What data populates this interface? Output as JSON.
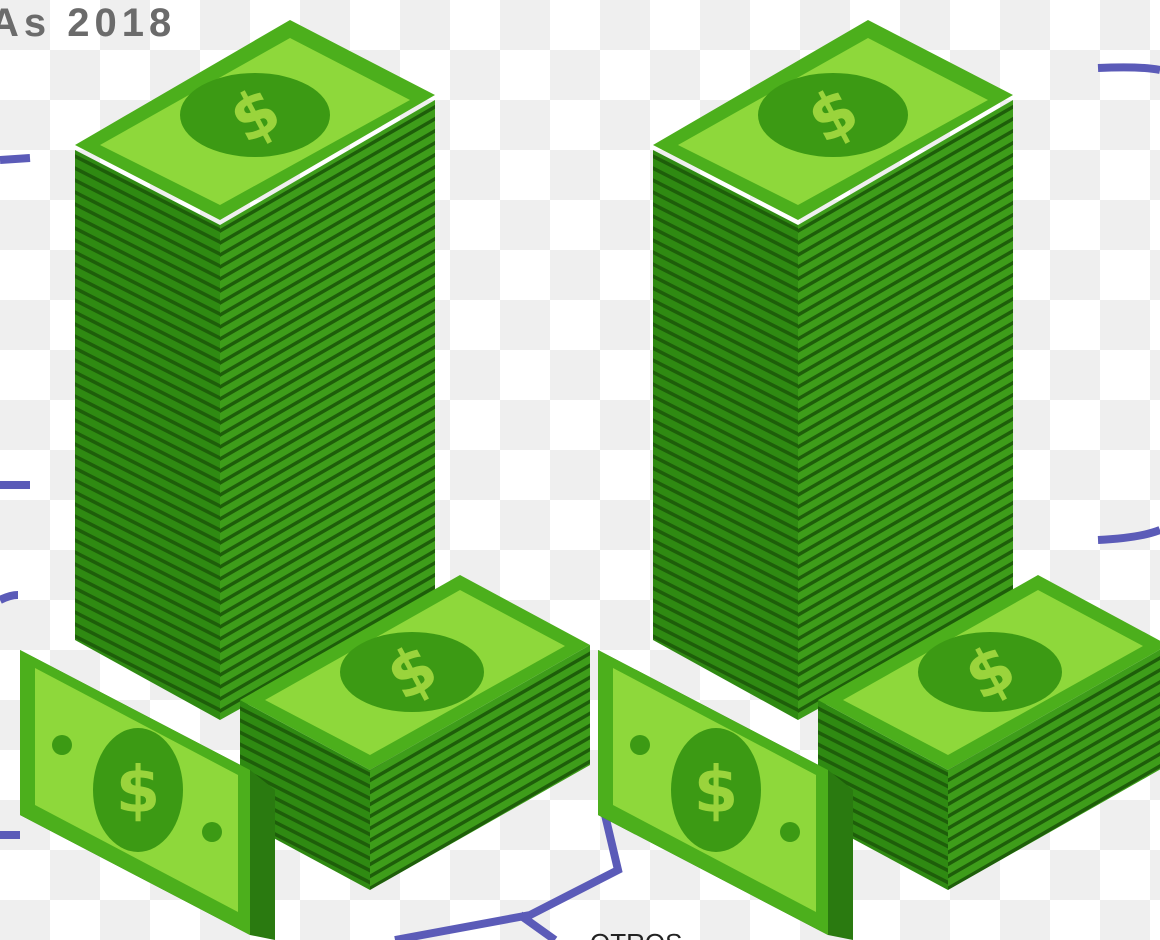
{
  "title": "As 2018",
  "label": "OTROS"
}
